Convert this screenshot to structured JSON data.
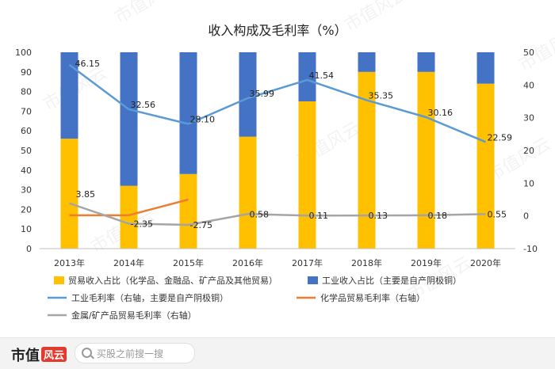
{
  "chart_data": {
    "type": "bar+line",
    "title": "收入构成及毛利率（%）",
    "categories": [
      "2013年",
      "2014年",
      "2015年",
      "2016年",
      "2017年",
      "2018年",
      "2019年",
      "2020年"
    ],
    "stacked_bars": [
      {
        "name": "贸易收入占比（化学品、金融品、矿产品及其他贸易）",
        "color": "#FFC000",
        "values": [
          56,
          32,
          38,
          57,
          75,
          90,
          90,
          84
        ]
      },
      {
        "name": "工业收入占比（主要是自产阴极铜）",
        "color": "#4472C4",
        "values": [
          44,
          68,
          62,
          43,
          25,
          10,
          10,
          16
        ]
      }
    ],
    "lines": [
      {
        "name": "工业毛利率（右轴，主要是自产阴极铜）",
        "color": "#5B9BD5",
        "axis": "right",
        "values": [
          46.15,
          32.56,
          28.1,
          35.99,
          41.54,
          35.35,
          30.16,
          22.59
        ],
        "labels": [
          "46.15",
          "32.56",
          "28.10",
          "35.99",
          "41.54",
          "35.35",
          "30.16",
          "22.59"
        ]
      },
      {
        "name": "化学品贸易毛利率（右轴）",
        "color": "#ED7D31",
        "axis": "right",
        "values": [
          0.2,
          0.2,
          5.0,
          null,
          null,
          null,
          null,
          null
        ],
        "labels": null
      },
      {
        "name": "金属/矿产品贸易毛利率（右轴）",
        "color": "#A5A5A5",
        "axis": "right",
        "values": [
          3.85,
          -2.35,
          -2.75,
          0.58,
          0.11,
          0.13,
          0.18,
          0.55
        ],
        "labels": [
          "3.85",
          "-2.35",
          "-2.75",
          "0.58",
          "0.11",
          "0.13",
          "0.18",
          "0.55"
        ]
      }
    ],
    "left_axis": {
      "min": 0,
      "max": 100,
      "ticks": [
        0,
        10,
        20,
        30,
        40,
        50,
        60,
        70,
        80,
        90,
        100
      ]
    },
    "right_axis": {
      "min": -10,
      "max": 50,
      "ticks": [
        -10,
        0,
        10,
        20,
        30,
        40,
        50
      ]
    },
    "legend_position": "bottom",
    "grid": false
  },
  "watermark": "市值风云",
  "footer": {
    "brand": "市值",
    "brand_badge": "风云",
    "search_placeholder": "买股之前搜一搜"
  }
}
